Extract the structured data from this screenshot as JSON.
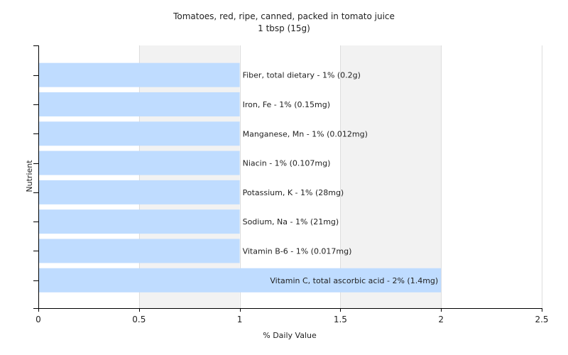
{
  "chart_data": {
    "type": "bar",
    "orientation": "horizontal",
    "title": "Tomatoes, red, ripe, canned, packed in tomato juice",
    "subtitle": "1 tbsp (15g)",
    "xlabel": "% Daily Value",
    "ylabel": "Nutrient",
    "xlim": [
      0,
      2.5
    ],
    "xticks": [
      "0",
      "0.5",
      "1",
      "1.5",
      "2",
      "2.5"
    ],
    "grid": "vertical",
    "bar_color": "#bfdcff",
    "stripe_color": "#f2f2f2",
    "categories": [
      "Fiber, total dietary - 1% (0.2g)",
      "Iron, Fe - 1% (0.15mg)",
      "Manganese, Mn - 1% (0.012mg)",
      "Niacin - 1% (0.107mg)",
      "Potassium, K - 1% (28mg)",
      "Sodium, Na - 1% (21mg)",
      "Vitamin B-6 - 1% (0.017mg)",
      "Vitamin C, total ascorbic acid - 2% (1.4mg)"
    ],
    "values": [
      1,
      1,
      1,
      1,
      1,
      1,
      1,
      2
    ]
  }
}
